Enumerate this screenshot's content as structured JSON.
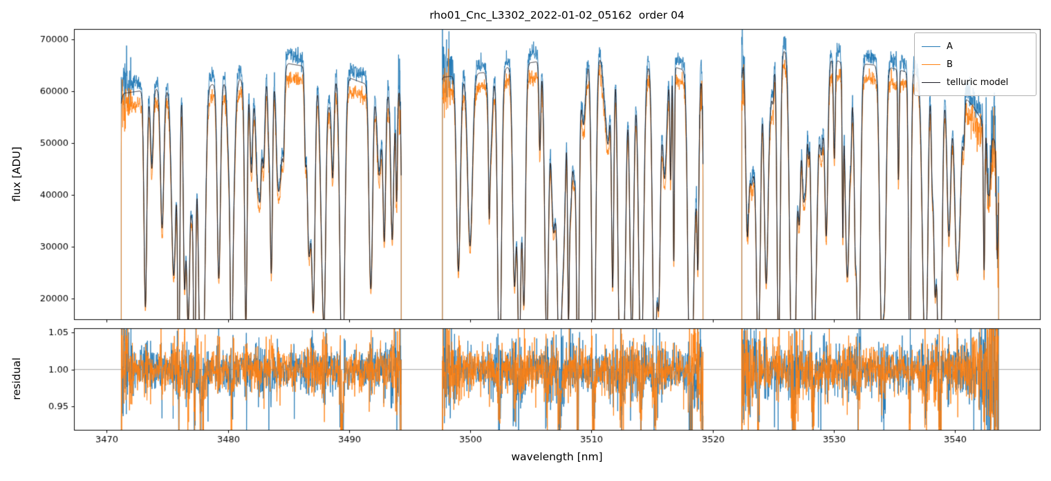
{
  "chart_data": {
    "type": "line",
    "title": "rho01_Cnc_L3302_2022-01-02_05162  order 04",
    "xlabel": "wavelength [nm]",
    "x_range": [
      3467.3,
      3547.0
    ],
    "xticks": [
      3470,
      3480,
      3490,
      3500,
      3510,
      3520,
      3530,
      3540
    ],
    "xticklabels": [
      "3470",
      "3480",
      "3490",
      "3500",
      "3510",
      "3520",
      "3530",
      "3540"
    ],
    "segments": [
      [
        3471.2,
        3494.3
      ],
      [
        3497.7,
        3519.2
      ],
      [
        3522.4,
        3543.6
      ]
    ],
    "panels": [
      {
        "name": "flux",
        "ylabel": "flux [ADU]",
        "y_range": [
          16000,
          72000
        ],
        "yticks": [
          20000,
          30000,
          40000,
          50000,
          60000,
          70000
        ],
        "yticklabels": [
          "20000",
          "30000",
          "40000",
          "50000",
          "60000",
          "70000"
        ],
        "grid": false
      },
      {
        "name": "residual",
        "ylabel": "residual",
        "y_range": [
          0.918,
          1.056
        ],
        "yticks": [
          0.95,
          1.0,
          1.05
        ],
        "yticklabels": [
          "0.95",
          "1.00",
          "1.05"
        ],
        "hline": 1.0,
        "hline_color": "#8a8a8a",
        "grid": false
      }
    ],
    "series": [
      {
        "name": "A",
        "color": "#1f77b4"
      },
      {
        "name": "B",
        "color": "#ff7f0e"
      },
      {
        "name": "telluric model",
        "color": "#1a1a22"
      }
    ],
    "legend": {
      "position": "upper right",
      "items": [
        "A",
        "B",
        "telluric model"
      ]
    },
    "synthesis": {
      "seed": 7,
      "sample_step_nm": 0.02,
      "n_lines": 170,
      "line_width_min_nm": 0.05,
      "line_width_max_nm": 0.2,
      "b_ratio": 0.935,
      "model_ratio": 0.975,
      "flux_noise_sigma": 0.012,
      "residual_sigma": 0.013,
      "edge_noise_boost": 3.5,
      "edge_width_nm": 1.2,
      "right_end_falloff_nm": 3540.3,
      "continuum": [
        [
          3471,
          61000
        ],
        [
          3474,
          62000
        ],
        [
          3478,
          62500
        ],
        [
          3482,
          64500
        ],
        [
          3485,
          67000
        ],
        [
          3487,
          66200
        ],
        [
          3490,
          64200
        ],
        [
          3492,
          62400
        ],
        [
          3494.3,
          61500
        ],
        [
          3497.7,
          64300
        ],
        [
          3501,
          65200
        ],
        [
          3505,
          67200
        ],
        [
          3508,
          68200
        ],
        [
          3511,
          68600
        ],
        [
          3514,
          67200
        ],
        [
          3517,
          66200
        ],
        [
          3519.2,
          64600
        ],
        [
          3522.4,
          68200
        ],
        [
          3525,
          70000
        ],
        [
          3528,
          68600
        ],
        [
          3531,
          67200
        ],
        [
          3534,
          66600
        ],
        [
          3537,
          64700
        ],
        [
          3540,
          62500
        ],
        [
          3541.5,
          58500
        ],
        [
          3543.6,
          50500
        ]
      ]
    }
  }
}
